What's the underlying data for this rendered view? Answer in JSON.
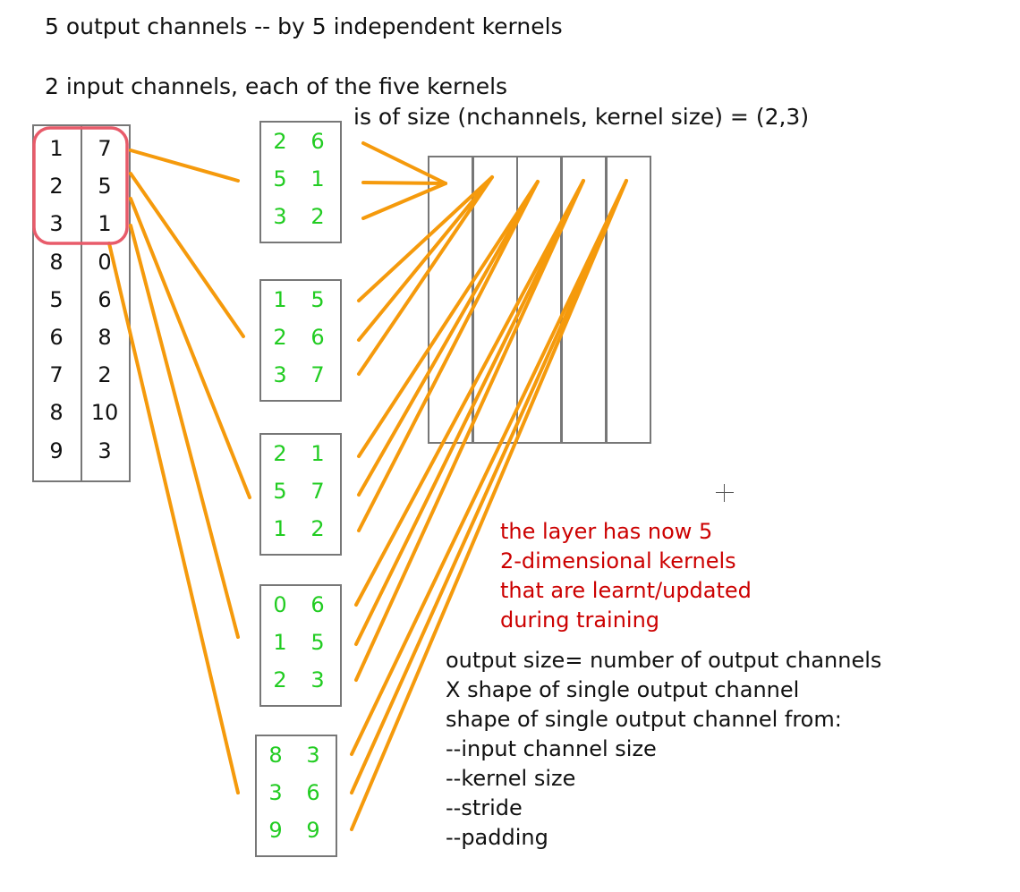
{
  "heading": "5 output channels -- by 5 independent kernels",
  "subheading_line1": "2 input channels, each of the five kernels",
  "subheading_line2": "is of size (nchannels, kernel size) = (2,3)",
  "input_matrix": {
    "col1": [
      "1",
      "2",
      "3",
      "8",
      "5",
      "6",
      "7",
      "8",
      "9"
    ],
    "col2": [
      "7",
      "5",
      "1",
      "0",
      "6",
      "8",
      "2",
      "10",
      "3"
    ]
  },
  "kernels": [
    {
      "col1": [
        "2",
        "5",
        "3"
      ],
      "col2": [
        "6",
        "1",
        "2"
      ]
    },
    {
      "col1": [
        "1",
        "2",
        "3"
      ],
      "col2": [
        "5",
        "6",
        "7"
      ]
    },
    {
      "col1": [
        "2",
        "5",
        "1"
      ],
      "col2": [
        "1",
        "7",
        "2"
      ]
    },
    {
      "col1": [
        "0",
        "1",
        "2"
      ],
      "col2": [
        "6",
        "5",
        "3"
      ]
    },
    {
      "col1": [
        "8",
        "3",
        "9"
      ],
      "col2": [
        "3",
        "6",
        "9"
      ]
    }
  ],
  "note_lines": [
    "the layer has now 5",
    "2-dimensional kernels",
    "that are learnt/updated",
    "during training"
  ],
  "output_lines": [
    "output size= number of output channels",
    "X shape of single output channel",
    "shape of single output channel from:",
    "--input channel size",
    "--kernel size",
    "--stride",
    "--padding"
  ],
  "colors": {
    "arrow": "#f59a0c",
    "kernel_text": "#22cc22",
    "note": "#cc0000",
    "highlight": "#e85b6a"
  }
}
